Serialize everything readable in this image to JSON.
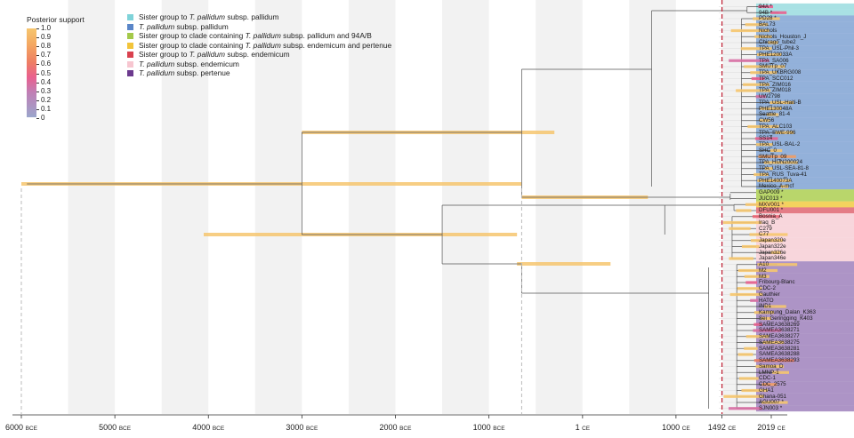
{
  "legend": {
    "title": "Posterior support",
    "scale_labels": [
      "1.0",
      "0.9",
      "0.8",
      "0.7",
      "0.6",
      "0.5",
      "0.4",
      "0.3",
      "0.2",
      "0.1",
      "0"
    ],
    "clades": [
      {
        "color": "#7fd3d9",
        "prefix": "Sister group to ",
        "italic": "T. pallidum",
        "suffix": " subsp. pallidum"
      },
      {
        "color": "#5a86c8",
        "prefix": "",
        "italic": "T. pallidum",
        "suffix": " subsp. pallidum"
      },
      {
        "color": "#a4c94a",
        "prefix": "Sister group to clade containing ",
        "italic": "T. pallidum",
        "suffix": " subsp. pallidum and 94A/B"
      },
      {
        "color": "#f2c43a",
        "prefix": "Sister group to clade containing ",
        "italic": "T. pallidum",
        "suffix": " subsp. endemicum and pertenue"
      },
      {
        "color": "#d9414e",
        "prefix": "Sister group to ",
        "italic": "T. pallidum",
        "suffix": " subsp. endemicum"
      },
      {
        "color": "#f7c6d0",
        "prefix": "",
        "italic": "T. pallidum",
        "suffix": " subsp. endemicum"
      },
      {
        "color": "#6c3a8e",
        "prefix": "",
        "italic": "T. pallidum",
        "suffix": " subsp. pertenue"
      }
    ]
  },
  "axis": {
    "ticks": [
      {
        "value": -6000,
        "num": "6000",
        "era": "BCE"
      },
      {
        "value": -5000,
        "num": "5000",
        "era": "BCE"
      },
      {
        "value": -4000,
        "num": "4000",
        "era": "BCE"
      },
      {
        "value": -3000,
        "num": "3000",
        "era": "BCE"
      },
      {
        "value": -2000,
        "num": "2000",
        "era": "BCE"
      },
      {
        "value": -1000,
        "num": "1000",
        "era": "BCE"
      },
      {
        "value": 1,
        "num": "1",
        "era": "CE"
      },
      {
        "value": 1000,
        "num": "1000",
        "era": "CE"
      },
      {
        "value": 1492,
        "num": "1492",
        "era": "CE"
      },
      {
        "value": 2019,
        "num": "2019",
        "era": "CE"
      }
    ],
    "marker_year": 1492
  },
  "leaves": [
    {
      "label": "94A *",
      "band": "#a9e1e4"
    },
    {
      "label": "94B *",
      "band": "#a9e1e4"
    },
    {
      "label": "PD28 *",
      "band": "#93b1da"
    },
    {
      "label": "BAL73",
      "band": "#93b1da"
    },
    {
      "label": "Nichols",
      "band": "#93b1da"
    },
    {
      "label": "Nichols_Houston_J",
      "band": "#93b1da"
    },
    {
      "label": "Chicago_tube2",
      "band": "#93b1da"
    },
    {
      "label": "TPA_USL-Phil-3",
      "band": "#93b1da"
    },
    {
      "label": "PHE120033A",
      "band": "#93b1da"
    },
    {
      "label": "TPA_SA006",
      "band": "#93b1da"
    },
    {
      "label": "SMUTp_07",
      "band": "#93b1da"
    },
    {
      "label": "TPA_UKBRG008",
      "band": "#93b1da"
    },
    {
      "label": "TPA_SCC012",
      "band": "#93b1da"
    },
    {
      "label": "TPA_ZIM016",
      "band": "#93b1da"
    },
    {
      "label": "TPA_ZIM018",
      "band": "#93b1da"
    },
    {
      "label": "UW2798",
      "band": "#93b1da"
    },
    {
      "label": "TPA_USL-Haiti-B",
      "band": "#93b1da"
    },
    {
      "label": "PHE130048A",
      "band": "#93b1da"
    },
    {
      "label": "Seattle_81-4",
      "band": "#93b1da"
    },
    {
      "label": "CW56",
      "band": "#93b1da"
    },
    {
      "label": "TPA_ALC103",
      "band": "#93b1da"
    },
    {
      "label": "TPA_SWE-996",
      "band": "#93b1da"
    },
    {
      "label": "SS14",
      "band": "#93b1da"
    },
    {
      "label": "TPA_USL-BAL-2",
      "band": "#93b1da"
    },
    {
      "label": "SHC_0",
      "band": "#93b1da"
    },
    {
      "label": "SMUTp_09",
      "band": "#93b1da"
    },
    {
      "label": "TPA_HUN200024",
      "band": "#93b1da"
    },
    {
      "label": "TPA_USL-SEA-81-8",
      "band": "#93b1da"
    },
    {
      "label": "TPA_RUS_Tuva-41",
      "band": "#93b1da"
    },
    {
      "label": "PHE140073A",
      "band": "#93b1da"
    },
    {
      "label": "Mexico_A-mcf",
      "band": "#93b1da"
    },
    {
      "label": "GAP009 *",
      "band": "#b9d66b"
    },
    {
      "label": "JUC013 *",
      "band": "#b9d66b"
    },
    {
      "label": "MXV001 *",
      "band": "#f3d25e"
    },
    {
      "label": "DFU001 *",
      "band": "#e47c86"
    },
    {
      "label": "Bosnia_A",
      "band": "#f8d6dc"
    },
    {
      "label": "Iraq_B",
      "band": "#f8d6dc"
    },
    {
      "label": "C279",
      "band": "#f8d6dc"
    },
    {
      "label": "C77",
      "band": "#f8d6dc"
    },
    {
      "label": "Japan320e",
      "band": "#f8d6dc"
    },
    {
      "label": "Japan322e",
      "band": "#f8d6dc"
    },
    {
      "label": "Japan326e",
      "band": "#f8d6dc"
    },
    {
      "label": "Japan346e",
      "band": "#f8d6dc"
    },
    {
      "label": "A10",
      "band": "#ad94c6"
    },
    {
      "label": "M2",
      "band": "#ad94c6"
    },
    {
      "label": "M3",
      "band": "#ad94c6"
    },
    {
      "label": "Fribourg-Blanc",
      "band": "#ad94c6"
    },
    {
      "label": "CDC-2",
      "band": "#ad94c6"
    },
    {
      "label": "Gauthier",
      "band": "#ad94c6"
    },
    {
      "label": "HATO",
      "band": "#ad94c6"
    },
    {
      "label": "IND1",
      "band": "#ad94c6"
    },
    {
      "label": "Kampung_Dalan_K363",
      "band": "#ad94c6"
    },
    {
      "label": "Sei_Geringging_K403",
      "band": "#ad94c6"
    },
    {
      "label": "SAMEA3638269",
      "band": "#ad94c6"
    },
    {
      "label": "SAMEA3638271",
      "band": "#ad94c6"
    },
    {
      "label": "SAMEA3638277",
      "band": "#ad94c6"
    },
    {
      "label": "SAMEA3638275",
      "band": "#ad94c6"
    },
    {
      "label": "SAMEA3638281",
      "band": "#ad94c6"
    },
    {
      "label": "SAMEA3638288",
      "band": "#ad94c6"
    },
    {
      "label": "SAMEA3638293",
      "band": "#ad94c6"
    },
    {
      "label": "Samoa_D",
      "band": "#ad94c6"
    },
    {
      "label": "LMNP-1",
      "band": "#ad94c6"
    },
    {
      "label": "CDC-1",
      "band": "#ad94c6"
    },
    {
      "label": "CDC_2575",
      "band": "#ad94c6"
    },
    {
      "label": "GHA1",
      "band": "#ad94c6"
    },
    {
      "label": "Ghana-051",
      "band": "#ad94c6"
    },
    {
      "label": "AGU007 *",
      "band": "#ad94c6"
    },
    {
      "label": "SJN003 *",
      "band": "#ad94c6"
    }
  ],
  "internal_nodes": [
    {
      "year": -5960,
      "hpd": [
        -6000,
        -650
      ],
      "support": 1.0
    },
    {
      "year": -3000,
      "hpd": [
        -3000,
        -300
      ],
      "support": 1.0
    },
    {
      "year": -3000,
      "hpd": [
        -4050,
        -700
      ],
      "support": 1.0
    },
    {
      "year": -1500,
      "hpd": [
        -700,
        300
      ],
      "support": 1.0
    },
    {
      "year": -650,
      "hpd": [
        -650,
        700
      ],
      "support": 1.0
    }
  ]
}
